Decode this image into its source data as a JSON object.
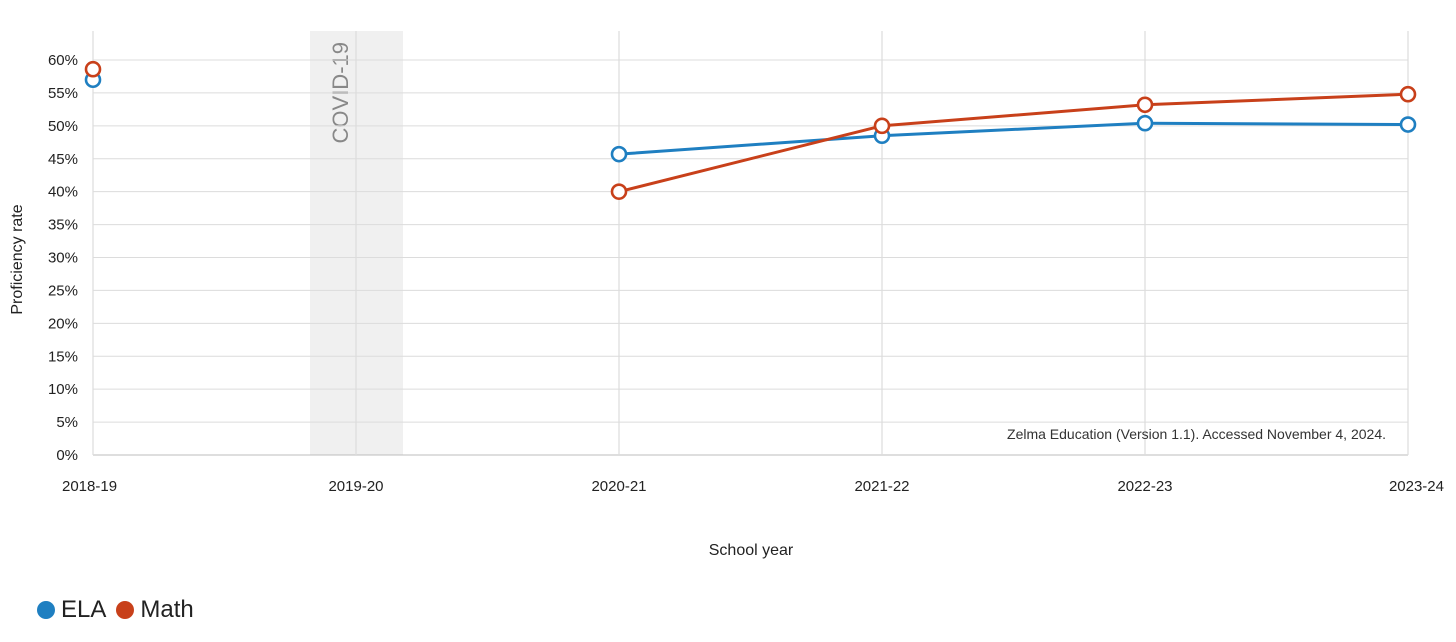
{
  "chart_data": {
    "type": "line",
    "categories": [
      "2018-19",
      "2019-20",
      "2020-21",
      "2021-22",
      "2022-23",
      "2023-24"
    ],
    "series": [
      {
        "name": "ELA",
        "color": "#1f7fc1",
        "values": [
          57.0,
          null,
          45.7,
          48.5,
          50.4,
          50.2
        ]
      },
      {
        "name": "Math",
        "color": "#c8401a",
        "values": [
          58.6,
          null,
          40.0,
          50.0,
          53.2,
          54.8
        ]
      }
    ],
    "ylim": [
      0,
      60
    ],
    "yticks": [
      "0%",
      "5%",
      "10%",
      "15%",
      "20%",
      "25%",
      "30%",
      "35%",
      "40%",
      "45%",
      "50%",
      "55%",
      "60%"
    ],
    "xlabel": "School year",
    "ylabel": "Proficiency rate",
    "band": {
      "label": "COVID-19",
      "category": "2019-20"
    },
    "annotation": "Zelma Education (Version 1.1). Accessed November 4, 2024.",
    "grid": true,
    "legend_placement": "bottom-left"
  }
}
